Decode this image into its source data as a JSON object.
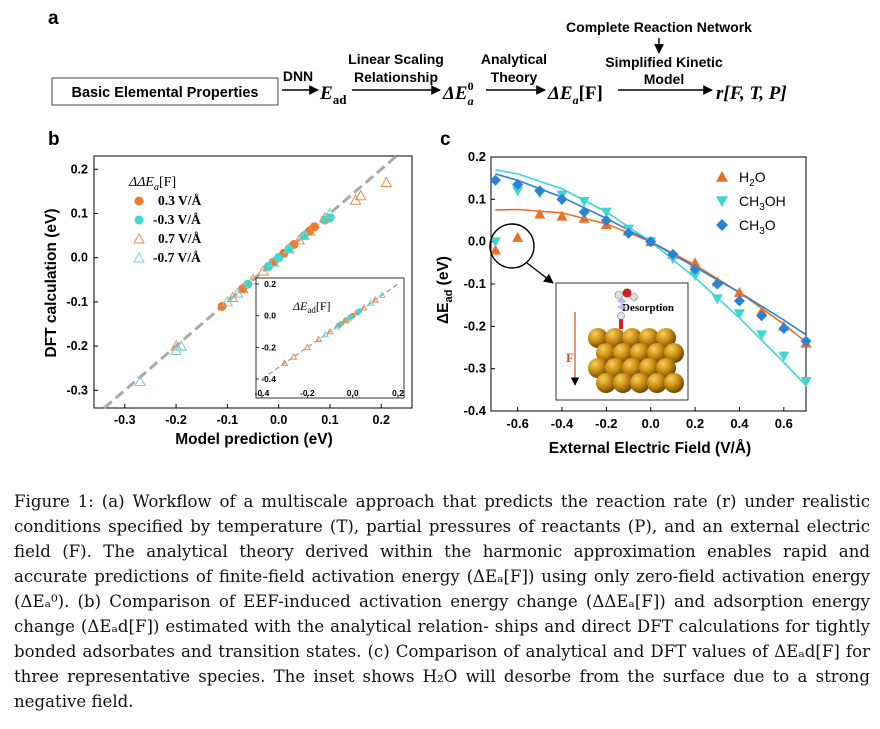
{
  "panel_a": {
    "label": "a",
    "box_text": "Basic Elemental Properties",
    "dnn": "DNN",
    "e_ad_main": "E",
    "e_ad_sub": "ad",
    "step1": [
      "Linear Scaling",
      "Relationship"
    ],
    "e0_main": "ΔE",
    "e0_sub": "a",
    "e0_sup": "0",
    "step2": [
      "Analytical",
      "Theory"
    ],
    "dea_main": "ΔE",
    "dea_sub": "a",
    "dea_tail": "[F]",
    "network": "Complete Reaction Network",
    "step3": [
      "Simplified Kinetic",
      "Model"
    ],
    "rate": "r[F, T, P]"
  },
  "panel_b": {
    "label": "b",
    "legend_title": "ΔΔE",
    "legend_title_sub": "a",
    "legend_title_tail": "[F]",
    "legend": [
      {
        "label": "0.3 V/Å",
        "marker": "circle",
        "color": "#ee7a2a"
      },
      {
        "label": "-0.3 V/Å",
        "marker": "circle",
        "color": "#3ed8d0"
      },
      {
        "label": "0.7 V/Å",
        "marker": "triangle-open",
        "color": "#e2904f"
      },
      {
        "label": "-0.7 V/Å",
        "marker": "triangle-open",
        "color": "#6fcfd8"
      }
    ],
    "inset_title": "ΔE",
    "inset_title_sub": "ad",
    "inset_title_tail": "[F]"
  },
  "panel_c": {
    "label": "c",
    "inset_text": "Desorption",
    "inset_force": "F"
  },
  "caption": {
    "lines": [
      "Figure 1: (a) Workflow of a multiscale approach that predicts the reaction rate (r) under",
      "realistic conditions specified by temperature (T), partial pressures of reactants (P), and an",
      "external electric field (F). The analytical theory derived within the harmonic approximation",
      "enables rapid and accurate predictions of finite-field activation energy (ΔEₐ[F]) using only",
      "zero-field activation energy (ΔEₐ⁰). (b) Comparison of EEF-induced activation energy change",
      "(ΔΔEₐ[F]) and adsorption energy change (ΔEₐd[F]) estimated with the analytical relation-",
      "ships and direct DFT calculations for tightly bonded adsorbates and transition states. (c)",
      "Comparison of analytical and DFT values of ΔEₐd[F] for three representative species. The",
      "inset shows H₂O will desorbe from the surface due to a strong negative field."
    ]
  },
  "chart_data": [
    {
      "panel": "b",
      "type": "scatter",
      "xlabel": "Model prediction (eV)",
      "ylabel": "DFT calculation (eV)",
      "xlim": [
        -0.36,
        0.26
      ],
      "ylim": [
        -0.34,
        0.23
      ],
      "xticks": [
        "-0.3",
        "-0.2",
        "-0.1",
        "0.0",
        "0.1",
        "0.2"
      ],
      "yticks": [
        "0.2",
        "0.1",
        "0.0",
        "-0.1",
        "-0.2",
        "-0.3"
      ],
      "parity_line": true,
      "series": [
        {
          "name": "0.3 V/Å",
          "marker": "circle-filled",
          "color": "#ee7a2a",
          "x": [
            -0.11,
            -0.07,
            -0.02,
            -0.01,
            0.0,
            0.01,
            0.03,
            0.06,
            0.07
          ],
          "y": [
            -0.11,
            -0.07,
            -0.02,
            -0.01,
            0.0,
            0.01,
            0.03,
            0.06,
            0.07
          ]
        },
        {
          "name": "-0.3 V/Å",
          "marker": "circle-filled",
          "color": "#3ed8d0",
          "x": [
            -0.06,
            -0.02,
            0.0,
            0.02,
            0.05,
            0.09,
            0.1
          ],
          "y": [
            -0.06,
            -0.02,
            0.0,
            0.02,
            0.05,
            0.085,
            0.09
          ]
        },
        {
          "name": "0.7 V/Å",
          "marker": "triangle-open",
          "color": "#e2904f",
          "x": [
            -0.2,
            -0.09,
            -0.07,
            -0.05,
            -0.03,
            0.02,
            0.04,
            0.06,
            0.09,
            0.15,
            0.16,
            0.21
          ],
          "y": [
            -0.2,
            -0.09,
            -0.07,
            -0.05,
            -0.03,
            0.02,
            0.04,
            0.06,
            0.09,
            0.13,
            0.14,
            0.17
          ]
        },
        {
          "name": "-0.7 V/Å",
          "marker": "triangle-open",
          "color": "#6fcfd8",
          "x": [
            -0.27,
            -0.2,
            -0.19,
            -0.1,
            -0.08,
            -0.01,
            0.02,
            0.05,
            0.1
          ],
          "y": [
            -0.28,
            -0.21,
            -0.2,
            -0.1,
            -0.08,
            -0.01,
            0.02,
            0.05,
            0.1
          ]
        }
      ],
      "inset": {
        "xlim": [
          -0.4,
          0.2
        ],
        "ylim": [
          -0.4,
          0.2
        ],
        "xticks": [
          "-0.4",
          "-0.2",
          "0.0",
          "0.2"
        ],
        "yticks": [
          "0.2",
          "0.0",
          "-0.2",
          "-0.4"
        ],
        "parity_line": true,
        "series": [
          {
            "name": "0.3 V/Å",
            "marker": "circle-filled",
            "color": "#ee7a2a",
            "x": [
              -0.06,
              -0.03,
              0.0,
              0.02
            ],
            "y": [
              -0.06,
              -0.03,
              0.0,
              0.02
            ]
          },
          {
            "name": "-0.3 V/Å",
            "marker": "circle-filled",
            "color": "#3ed8d0",
            "x": [
              -0.05,
              -0.01,
              0.03
            ],
            "y": [
              -0.05,
              -0.01,
              0.03
            ]
          },
          {
            "name": "0.7 V/Å",
            "marker": "triangle-open",
            "color": "#e2904f",
            "x": [
              -0.3,
              -0.26,
              -0.2,
              -0.15,
              -0.1,
              -0.03,
              0.05,
              0.1
            ],
            "y": [
              -0.3,
              -0.26,
              -0.2,
              -0.15,
              -0.1,
              -0.03,
              0.05,
              0.1
            ]
          },
          {
            "name": "-0.7 V/Å",
            "marker": "triangle-open",
            "color": "#6fcfd8",
            "x": [
              -0.12,
              -0.07,
              -0.02,
              0.02,
              0.08,
              0.13
            ],
            "y": [
              -0.12,
              -0.07,
              -0.02,
              0.02,
              0.08,
              0.13
            ]
          }
        ]
      }
    },
    {
      "panel": "c",
      "type": "scatter",
      "xlabel": "External Electric Field (V/Å)",
      "ylabel": "ΔE",
      "ylabel_sub": "ad",
      "ylabel_tail": " (eV)",
      "xlim": [
        -0.72,
        0.7
      ],
      "ylim": [
        -0.4,
        0.2
      ],
      "xticks": [
        "-0.6",
        "-0.4",
        "-0.2",
        "0.0",
        "0.2",
        "0.4",
        "0.6"
      ],
      "yticks": [
        "0.2",
        "0.1",
        "0.0",
        "-0.1",
        "-0.2",
        "-0.3",
        "-0.4"
      ],
      "series": [
        {
          "name": "H2O",
          "legend_main": "H",
          "legend_sub": "2",
          "legend_tail": "O",
          "marker": "triangle-up",
          "color": "#e8702a",
          "x": [
            -0.7,
            -0.6,
            -0.5,
            -0.4,
            -0.3,
            -0.2,
            -0.1,
            0.0,
            0.1,
            0.2,
            0.3,
            0.4,
            0.5,
            0.6,
            0.7
          ],
          "y": [
            -0.02,
            0.01,
            0.065,
            0.06,
            0.055,
            0.04,
            0.025,
            0.0,
            -0.03,
            -0.05,
            -0.095,
            -0.12,
            -0.165,
            -0.2,
            -0.24
          ],
          "curve": {
            "x": [
              -0.7,
              -0.6,
              -0.4,
              -0.2,
              0.0,
              0.2,
              0.4,
              0.6,
              0.7
            ],
            "y": [
              0.075,
              0.076,
              0.068,
              0.042,
              0.0,
              -0.055,
              -0.12,
              -0.195,
              -0.237
            ]
          }
        },
        {
          "name": "CH3OH",
          "legend_main": "CH",
          "legend_sub": "3",
          "legend_tail": "OH",
          "marker": "triangle-down",
          "color": "#3fd5d5",
          "x": [
            -0.7,
            -0.6,
            -0.5,
            -0.4,
            -0.3,
            -0.2,
            -0.1,
            0.0,
            0.1,
            0.2,
            0.3,
            0.4,
            0.5,
            0.6,
            0.7
          ],
          "y": [
            0.0,
            0.12,
            0.115,
            0.11,
            0.095,
            0.07,
            0.03,
            0.0,
            -0.04,
            -0.08,
            -0.135,
            -0.17,
            -0.22,
            -0.27,
            -0.33
          ],
          "curve": {
            "x": [
              -0.7,
              -0.6,
              -0.4,
              -0.2,
              0.0,
              0.2,
              0.4,
              0.6,
              0.7
            ],
            "y": [
              0.17,
              0.16,
              0.125,
              0.07,
              0.0,
              -0.085,
              -0.18,
              -0.285,
              -0.34
            ]
          }
        },
        {
          "name": "CH3O",
          "legend_main": "CH",
          "legend_sub": "3",
          "legend_tail": "O",
          "marker": "diamond",
          "color": "#2a82d6",
          "x": [
            -0.7,
            -0.6,
            -0.5,
            -0.4,
            -0.3,
            -0.2,
            -0.1,
            0.0,
            0.1,
            0.2,
            0.3,
            0.4,
            0.5,
            0.6,
            0.7
          ],
          "y": [
            0.145,
            0.135,
            0.12,
            0.1,
            0.07,
            0.05,
            0.02,
            0.0,
            -0.03,
            -0.065,
            -0.1,
            -0.14,
            -0.175,
            -0.205,
            -0.235
          ],
          "curve": {
            "x": [
              -0.7,
              -0.6,
              -0.4,
              -0.2,
              0.0,
              0.2,
              0.4,
              0.6,
              0.7
            ],
            "y": [
              0.16,
              0.145,
              0.105,
              0.055,
              0.0,
              -0.06,
              -0.12,
              -0.185,
              -0.22
            ]
          }
        }
      ]
    }
  ]
}
